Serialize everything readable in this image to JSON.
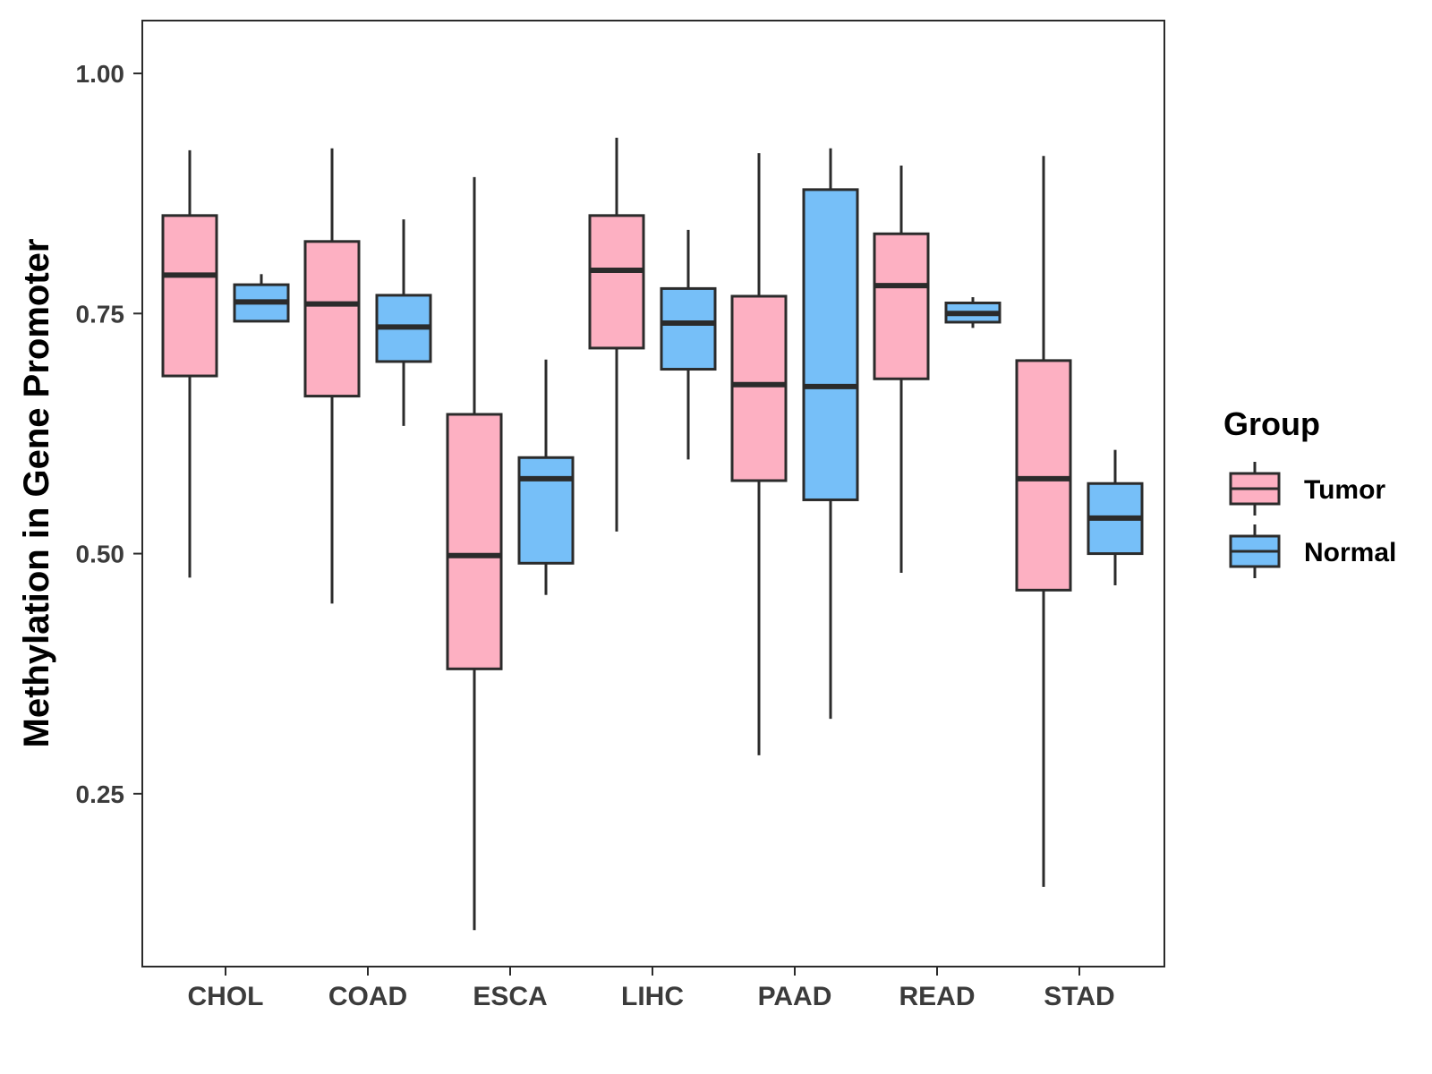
{
  "chart_data": {
    "type": "boxplot",
    "title": "",
    "xlabel": "",
    "ylabel": "Methylation in Gene Promoter",
    "ylim": [
      0.07,
      1.055
    ],
    "yticks": [
      0.25,
      0.5,
      0.75,
      1.0
    ],
    "ytick_labels": [
      "0.25",
      "0.50",
      "0.75",
      "1.00"
    ],
    "categories": [
      "CHOL",
      "COAD",
      "ESCA",
      "LIHC",
      "PAAD",
      "READ",
      "STAD"
    ],
    "grid": false,
    "legend": {
      "title": "Group",
      "position": "right"
    },
    "series": [
      {
        "name": "Tumor",
        "color": "#FDB0C2",
        "boxes": [
          {
            "min": 0.475,
            "q1": 0.685,
            "median": 0.79,
            "q3": 0.852,
            "max": 0.92
          },
          {
            "min": 0.448,
            "q1": 0.664,
            "median": 0.76,
            "q3": 0.825,
            "max": 0.922
          },
          {
            "min": 0.108,
            "q1": 0.38,
            "median": 0.498,
            "q3": 0.645,
            "max": 0.892
          },
          {
            "min": 0.523,
            "q1": 0.714,
            "median": 0.795,
            "q3": 0.852,
            "max": 0.933
          },
          {
            "min": 0.29,
            "q1": 0.576,
            "median": 0.676,
            "q3": 0.768,
            "max": 0.917
          },
          {
            "min": 0.48,
            "q1": 0.682,
            "median": 0.779,
            "q3": 0.833,
            "max": 0.904
          },
          {
            "min": 0.153,
            "q1": 0.462,
            "median": 0.578,
            "q3": 0.701,
            "max": 0.914
          }
        ]
      },
      {
        "name": "Normal",
        "color": "#76BFF8",
        "boxes": [
          {
            "min": 0.742,
            "q1": 0.742,
            "median": 0.762,
            "q3": 0.78,
            "max": 0.791
          },
          {
            "min": 0.633,
            "q1": 0.7,
            "median": 0.736,
            "q3": 0.769,
            "max": 0.848
          },
          {
            "min": 0.457,
            "q1": 0.49,
            "median": 0.578,
            "q3": 0.6,
            "max": 0.702
          },
          {
            "min": 0.598,
            "q1": 0.692,
            "median": 0.74,
            "q3": 0.776,
            "max": 0.837
          },
          {
            "min": 0.328,
            "q1": 0.556,
            "median": 0.674,
            "q3": 0.879,
            "max": 0.922
          },
          {
            "min": 0.735,
            "q1": 0.741,
            "median": 0.75,
            "q3": 0.761,
            "max": 0.767
          },
          {
            "min": 0.467,
            "q1": 0.5,
            "median": 0.537,
            "q3": 0.573,
            "max": 0.608
          }
        ]
      }
    ]
  },
  "colors": {
    "stroke": "#2b2b2b",
    "tick_text": "#3b3b3b"
  }
}
